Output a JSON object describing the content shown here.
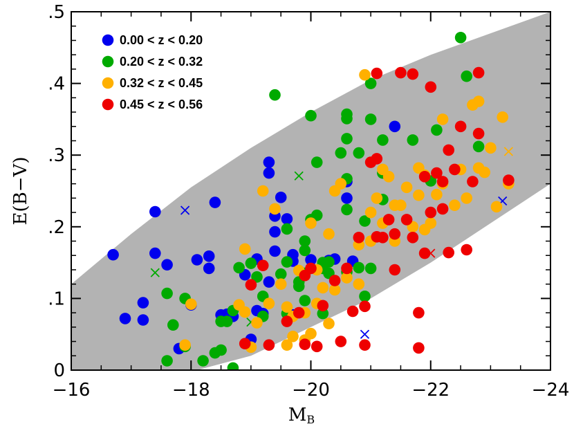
{
  "chart_data": {
    "type": "scatter",
    "xlabel": "M",
    "xlabel_sub": "B",
    "ylabel": "E(B−V)",
    "xlim": [
      -16,
      -24
    ],
    "ylim": [
      0,
      0.5
    ],
    "x_ticks": [
      -16,
      -18,
      -20,
      -22,
      -24
    ],
    "x_tick_labels": [
      "−16",
      "−18",
      "−20",
      "−22",
      "−24"
    ],
    "y_ticks": [
      0,
      0.1,
      0.2,
      0.3,
      0.4,
      0.5
    ],
    "y_tick_labels": [
      "0",
      ".1",
      ".2",
      ".3",
      ".4",
      ".5"
    ],
    "grid": false,
    "legend_position": "top-left",
    "band": {
      "color": "#b3b3b3",
      "upper": [
        [
          -16,
          0.12
        ],
        [
          -17,
          0.19
        ],
        [
          -18,
          0.255
        ],
        [
          -19,
          0.31
        ],
        [
          -20,
          0.36
        ],
        [
          -21,
          0.405
        ],
        [
          -22,
          0.44
        ],
        [
          -23,
          0.47
        ],
        [
          -24,
          0.5
        ]
      ],
      "lower": [
        [
          -18.1,
          0
        ],
        [
          -19,
          0.02
        ],
        [
          -20,
          0.06
        ],
        [
          -21,
          0.1
        ],
        [
          -22,
          0.15
        ],
        [
          -23,
          0.205
        ],
        [
          -24,
          0.26
        ]
      ]
    },
    "series": [
      {
        "name": "0.00 < z < 0.20",
        "color": "#0000ee",
        "circles": [
          [
            -16.7,
            0.161
          ],
          [
            -16.9,
            0.072
          ],
          [
            -17.2,
            0.094
          ],
          [
            -17.2,
            0.07
          ],
          [
            -17.4,
            0.221
          ],
          [
            -17.4,
            0.163
          ],
          [
            -17.6,
            0.147
          ],
          [
            -17.8,
            0.03
          ],
          [
            -18.0,
            0.091
          ],
          [
            -18.1,
            0.154
          ],
          [
            -18.3,
            0.159
          ],
          [
            -18.3,
            0.142
          ],
          [
            -18.4,
            0.234
          ],
          [
            -18.5,
            0.077
          ],
          [
            -18.6,
            0.078
          ],
          [
            -18.7,
            0.075
          ],
          [
            -18.9,
            0.133
          ],
          [
            -19.0,
            0.043
          ],
          [
            -19.1,
            0.155
          ],
          [
            -19.1,
            0.083
          ],
          [
            -19.2,
            0.079
          ],
          [
            -19.3,
            0.29
          ],
          [
            -19.3,
            0.275
          ],
          [
            -19.3,
            0.123
          ],
          [
            -19.4,
            0.215
          ],
          [
            -19.4,
            0.193
          ],
          [
            -19.4,
            0.166
          ],
          [
            -19.5,
            0.241
          ],
          [
            -19.6,
            0.211
          ],
          [
            -19.7,
            0.161
          ],
          [
            -19.7,
            0.152
          ],
          [
            -19.7,
            0.077
          ],
          [
            -20.0,
            0.154
          ],
          [
            -20.3,
            0.153
          ],
          [
            -20.4,
            0.155
          ],
          [
            -20.6,
            0.263
          ],
          [
            -20.6,
            0.24
          ],
          [
            -20.7,
            0.152
          ],
          [
            -21.4,
            0.34
          ]
        ],
        "crosses": [
          [
            -17.9,
            0.223
          ],
          [
            -20.9,
            0.05
          ],
          [
            -23.2,
            0.236
          ]
        ]
      },
      {
        "name": "0.20 < z < 0.32",
        "color": "#00aa00",
        "circles": [
          [
            -17.6,
            0.013
          ],
          [
            -17.6,
            0.107
          ],
          [
            -17.7,
            0.063
          ],
          [
            -17.9,
            0.033
          ],
          [
            -17.9,
            0.1
          ],
          [
            -18.2,
            0.013
          ],
          [
            -18.4,
            0.024
          ],
          [
            -18.5,
            0.068
          ],
          [
            -18.5,
            0.028
          ],
          [
            -18.6,
            0.068
          ],
          [
            -18.7,
            0.083
          ],
          [
            -18.7,
            0.003
          ],
          [
            -18.8,
            0.143
          ],
          [
            -19.0,
            0.149
          ],
          [
            -19.1,
            0.13
          ],
          [
            -19.2,
            0.103
          ],
          [
            -19.2,
            0.075
          ],
          [
            -19.4,
            0.384
          ],
          [
            -19.5,
            0.134
          ],
          [
            -19.6,
            0.151
          ],
          [
            -19.6,
            0.197
          ],
          [
            -19.6,
            0.079
          ],
          [
            -19.8,
            0.123
          ],
          [
            -19.8,
            0.117
          ],
          [
            -19.9,
            0.18
          ],
          [
            -19.9,
            0.167
          ],
          [
            -19.9,
            0.135
          ],
          [
            -19.9,
            0.097
          ],
          [
            -20.0,
            0.355
          ],
          [
            -20.0,
            0.21
          ],
          [
            -20.1,
            0.29
          ],
          [
            -20.1,
            0.216
          ],
          [
            -20.2,
            0.15
          ],
          [
            -20.2,
            0.142
          ],
          [
            -20.2,
            0.079
          ],
          [
            -20.3,
            0.151
          ],
          [
            -20.3,
            0.135
          ],
          [
            -20.5,
            0.303
          ],
          [
            -20.6,
            0.357
          ],
          [
            -20.6,
            0.351
          ],
          [
            -20.6,
            0.323
          ],
          [
            -20.6,
            0.267
          ],
          [
            -20.6,
            0.224
          ],
          [
            -20.6,
            0.137
          ],
          [
            -20.8,
            0.303
          ],
          [
            -20.8,
            0.143
          ],
          [
            -20.9,
            0.103
          ],
          [
            -20.9,
            0.208
          ],
          [
            -21.0,
            0.35
          ],
          [
            -21.0,
            0.142
          ],
          [
            -21.0,
            0.4
          ],
          [
            -21.2,
            0.321
          ],
          [
            -21.2,
            0.238
          ],
          [
            -21.2,
            0.275
          ],
          [
            -21.7,
            0.321
          ],
          [
            -22.0,
            0.264
          ],
          [
            -22.1,
            0.335
          ],
          [
            -22.5,
            0.464
          ],
          [
            -22.6,
            0.41
          ],
          [
            -22.8,
            0.312
          ]
        ],
        "crosses": [
          [
            -17.4,
            0.136
          ],
          [
            -19.0,
            0.067
          ],
          [
            -19.8,
            0.271
          ]
        ]
      },
      {
        "name": "0.32 < z < 0.45",
        "color": "#ffb000",
        "circles": [
          [
            -17.9,
            0.035
          ],
          [
            -18.0,
            0.092
          ],
          [
            -18.8,
            0.091
          ],
          [
            -18.9,
            0.169
          ],
          [
            -18.9,
            0.081
          ],
          [
            -19.0,
            0.032
          ],
          [
            -19.1,
            0.066
          ],
          [
            -19.2,
            0.25
          ],
          [
            -19.3,
            0.093
          ],
          [
            -19.4,
            0.225
          ],
          [
            -19.5,
            0.12
          ],
          [
            -19.6,
            0.035
          ],
          [
            -19.6,
            0.088
          ],
          [
            -19.7,
            0.075
          ],
          [
            -19.7,
            0.047
          ],
          [
            -19.8,
            0.139
          ],
          [
            -19.9,
            0.08
          ],
          [
            -19.9,
            0.042
          ],
          [
            -20.0,
            0.205
          ],
          [
            -20.0,
            0.051
          ],
          [
            -20.1,
            0.14
          ],
          [
            -20.1,
            0.093
          ],
          [
            -20.2,
            0.115
          ],
          [
            -20.3,
            0.065
          ],
          [
            -20.3,
            0.19
          ],
          [
            -20.4,
            0.112
          ],
          [
            -20.4,
            0.25
          ],
          [
            -20.5,
            0.26
          ],
          [
            -20.6,
            0.129
          ],
          [
            -20.8,
            0.175
          ],
          [
            -20.8,
            0.12
          ],
          [
            -20.9,
            0.412
          ],
          [
            -21.0,
            0.22
          ],
          [
            -21.0,
            0.18
          ],
          [
            -21.1,
            0.24
          ],
          [
            -21.2,
            0.205
          ],
          [
            -21.2,
            0.28
          ],
          [
            -21.3,
            0.27
          ],
          [
            -21.4,
            0.23
          ],
          [
            -21.4,
            0.18
          ],
          [
            -21.5,
            0.23
          ],
          [
            -21.6,
            0.255
          ],
          [
            -21.7,
            0.2
          ],
          [
            -21.8,
            0.282
          ],
          [
            -21.8,
            0.244
          ],
          [
            -21.9,
            0.272
          ],
          [
            -21.9,
            0.196
          ],
          [
            -22.0,
            0.205
          ],
          [
            -22.1,
            0.245
          ],
          [
            -22.2,
            0.35
          ],
          [
            -22.2,
            0.26
          ],
          [
            -22.4,
            0.23
          ],
          [
            -22.5,
            0.28
          ],
          [
            -22.6,
            0.24
          ],
          [
            -22.7,
            0.37
          ],
          [
            -22.8,
            0.375
          ],
          [
            -22.8,
            0.282
          ],
          [
            -22.9,
            0.276
          ],
          [
            -23.0,
            0.31
          ],
          [
            -23.1,
            0.228
          ],
          [
            -23.2,
            0.353
          ],
          [
            -23.3,
            0.26
          ]
        ],
        "crosses": [
          [
            -23.3,
            0.305
          ]
        ]
      },
      {
        "name": "0.45 < z < 0.56",
        "color": "#ee0000",
        "circles": [
          [
            -18.9,
            0.037
          ],
          [
            -19.0,
            0.119
          ],
          [
            -19.2,
            0.146
          ],
          [
            -19.3,
            0.035
          ],
          [
            -19.6,
            0.068
          ],
          [
            -19.8,
            0.08
          ],
          [
            -19.9,
            0.132
          ],
          [
            -19.9,
            0.036
          ],
          [
            -20.0,
            0.142
          ],
          [
            -20.1,
            0.033
          ],
          [
            -20.2,
            0.09
          ],
          [
            -20.4,
            0.125
          ],
          [
            -20.5,
            0.04
          ],
          [
            -20.6,
            0.142
          ],
          [
            -20.7,
            0.082
          ],
          [
            -20.8,
            0.185
          ],
          [
            -20.9,
            0.035
          ],
          [
            -20.9,
            0.089
          ],
          [
            -21.0,
            0.29
          ],
          [
            -21.1,
            0.414
          ],
          [
            -21.1,
            0.295
          ],
          [
            -21.1,
            0.186
          ],
          [
            -21.2,
            0.185
          ],
          [
            -21.3,
            0.21
          ],
          [
            -21.4,
            0.19
          ],
          [
            -21.4,
            0.14
          ],
          [
            -21.5,
            0.415
          ],
          [
            -21.6,
            0.21
          ],
          [
            -21.7,
            0.413
          ],
          [
            -21.7,
            0.185
          ],
          [
            -21.8,
            0.08
          ],
          [
            -21.8,
            0.031
          ],
          [
            -21.9,
            0.27
          ],
          [
            -21.9,
            0.163
          ],
          [
            -22.0,
            0.395
          ],
          [
            -22.0,
            0.22
          ],
          [
            -22.1,
            0.275
          ],
          [
            -22.2,
            0.263
          ],
          [
            -22.2,
            0.225
          ],
          [
            -22.3,
            0.307
          ],
          [
            -22.3,
            0.164
          ],
          [
            -22.4,
            0.28
          ],
          [
            -22.5,
            0.34
          ],
          [
            -22.6,
            0.168
          ],
          [
            -22.7,
            0.263
          ],
          [
            -22.8,
            0.415
          ],
          [
            -22.8,
            0.33
          ],
          [
            -23.3,
            0.265
          ]
        ],
        "crosses": [
          [
            -22.0,
            0.163
          ]
        ]
      }
    ]
  }
}
